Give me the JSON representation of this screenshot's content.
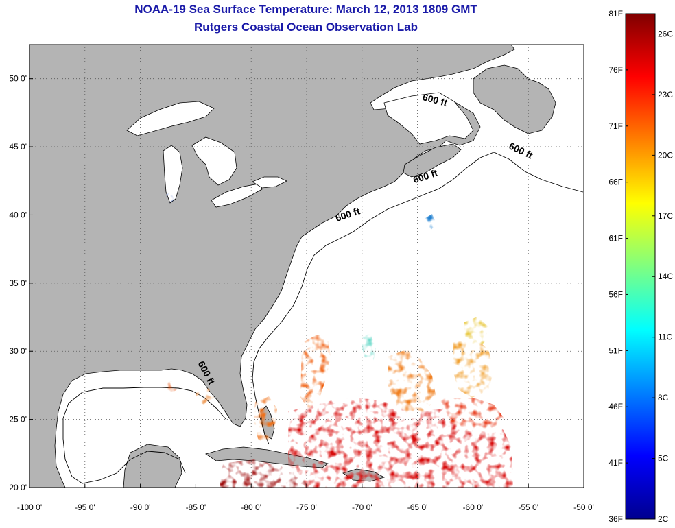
{
  "title": {
    "line1": "NOAA-19 Sea Surface Temperature:  March 12, 2013 1809 GMT",
    "line2": "Rutgers Coastal Ocean Observation Lab"
  },
  "map": {
    "lon_range": [
      -100,
      -50
    ],
    "lat_range": [
      20,
      52.5
    ],
    "x_ticks": [
      {
        "value": -100,
        "label": "-100 0'"
      },
      {
        "value": -95,
        "label": "-95 0'"
      },
      {
        "value": -90,
        "label": "-90 0'"
      },
      {
        "value": -85,
        "label": "-85 0'"
      },
      {
        "value": -80,
        "label": "-80 0'"
      },
      {
        "value": -75,
        "label": "-75 0'"
      },
      {
        "value": -70,
        "label": "-70 0'"
      },
      {
        "value": -65,
        "label": "-65 0'"
      },
      {
        "value": -60,
        "label": "-60 0'"
      },
      {
        "value": -55,
        "label": "-55 0'"
      },
      {
        "value": -50,
        "label": "-50 0'"
      }
    ],
    "y_ticks": [
      {
        "value": 20,
        "label": "20 0'"
      },
      {
        "value": 25,
        "label": "25 0'"
      },
      {
        "value": 30,
        "label": "30 0'"
      },
      {
        "value": 35,
        "label": "35 0'"
      },
      {
        "value": 40,
        "label": "40 0'"
      },
      {
        "value": 45,
        "label": "45 0'"
      },
      {
        "value": 50,
        "label": "50 0'"
      }
    ],
    "grid": "dotted",
    "contour_labels": [
      {
        "text": "600 ft",
        "lon": -63.5,
        "lat": 48.2,
        "rotation": 15
      },
      {
        "text": "600 ft",
        "lon": -55.8,
        "lat": 44.5,
        "rotation": 25
      },
      {
        "text": "600 ft",
        "lon": -64.2,
        "lat": 42.6,
        "rotation": -18
      },
      {
        "text": "600 ft",
        "lon": -71.2,
        "lat": 39.8,
        "rotation": -18
      },
      {
        "text": "600 ft",
        "lon": -84.3,
        "lat": 28.3,
        "rotation": 62
      }
    ],
    "colors": {
      "land": "#b4b4b4",
      "ocean": "#ffffff",
      "coastline": "#000000"
    }
  },
  "colorbar": {
    "left_labels": [
      "81F",
      "76F",
      "71F",
      "66F",
      "61F",
      "56F",
      "51F",
      "46F",
      "41F",
      "36F"
    ],
    "right_labels": [
      "26C",
      "23C",
      "20C",
      "17C",
      "14C",
      "11C",
      "8C",
      "5C",
      "2C"
    ],
    "colormap": "jet",
    "range_f": [
      36,
      81
    ],
    "range_c": [
      2,
      27
    ]
  }
}
